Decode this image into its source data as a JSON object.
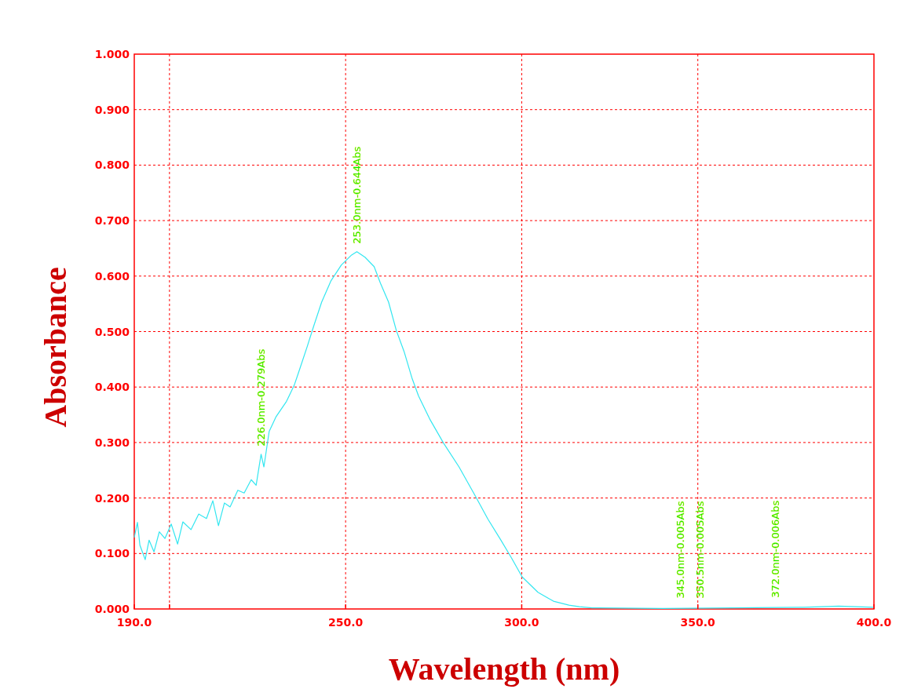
{
  "chart_data": {
    "type": "line",
    "xlabel": "Wavelength (nm)",
    "ylabel": "Absorbance",
    "xlim": [
      190,
      400
    ],
    "ylim": [
      0,
      1
    ],
    "xticks": [
      {
        "value": 190,
        "label": "190.0"
      },
      {
        "value": 200,
        "label": null
      },
      {
        "value": 250,
        "label": "250.0"
      },
      {
        "value": 300,
        "label": "300.0"
      },
      {
        "value": 350,
        "label": "350.0"
      },
      {
        "value": 400,
        "label": "400.0"
      }
    ],
    "yticks": [
      {
        "value": 0,
        "label": "0.000"
      },
      {
        "value": 0.1,
        "label": "0.100"
      },
      {
        "value": 0.2,
        "label": "0.200"
      },
      {
        "value": 0.3,
        "label": "0.300"
      },
      {
        "value": 0.4,
        "label": "0.400"
      },
      {
        "value": 0.5,
        "label": "0.500"
      },
      {
        "value": 0.6,
        "label": "0.600"
      },
      {
        "value": 0.7,
        "label": "0.700"
      },
      {
        "value": 0.8,
        "label": "0.800"
      },
      {
        "value": 0.9,
        "label": "0.900"
      },
      {
        "value": 1,
        "label": "1.000"
      }
    ],
    "grid": true,
    "series": [
      {
        "color": "#33e6f0",
        "x": [
          190,
          190.9,
          191.6,
          193.1,
          194.2,
          195.6,
          197.1,
          198.7,
          200.5,
          202.3,
          203.8,
          206.1,
          208.3,
          210.5,
          212.3,
          213.9,
          215.6,
          217.2,
          219.4,
          221.2,
          223.2,
          224.6,
          226.0,
          226.8,
          228.3,
          230.2,
          233.2,
          235.4,
          236.9,
          239.1,
          241.0,
          243.2,
          245.8,
          248.8,
          251.7,
          253.2,
          255.5,
          258.1,
          259.9,
          262.2,
          264.4,
          266.6,
          268.8,
          270.7,
          274.0,
          277.8,
          282.2,
          286.7,
          290.4,
          294.1,
          297.1,
          300.1,
          304.6,
          309.0,
          313.4,
          316.4,
          320,
          340,
          360,
          380,
          390,
          400
        ],
        "values": [
          0.129,
          0.156,
          0.115,
          0.089,
          0.124,
          0.103,
          0.139,
          0.127,
          0.153,
          0.117,
          0.157,
          0.143,
          0.171,
          0.163,
          0.195,
          0.15,
          0.191,
          0.184,
          0.214,
          0.209,
          0.233,
          0.223,
          0.279,
          0.256,
          0.32,
          0.346,
          0.374,
          0.403,
          0.431,
          0.473,
          0.511,
          0.553,
          0.591,
          0.62,
          0.638,
          0.644,
          0.634,
          0.617,
          0.587,
          0.553,
          0.502,
          0.464,
          0.417,
          0.384,
          0.341,
          0.299,
          0.256,
          0.205,
          0.162,
          0.124,
          0.092,
          0.058,
          0.03,
          0.014,
          0.007,
          0.004,
          0.002,
          0.001,
          0.002,
          0.003,
          0.005,
          0.003
        ]
      }
    ],
    "annotations": [
      {
        "text": "226.0nm-0.279Abs",
        "x": 226,
        "y": 0.279
      },
      {
        "text": "253.0nm-0.644Abs",
        "x": 253,
        "y": 0.644
      },
      {
        "text": "345.0nm-0.005Abs",
        "x": 345,
        "y": 0.005
      },
      {
        "text": "350.5nm-0.005Abs",
        "x": 350.5,
        "y": 0.005
      },
      {
        "text": "372.0nm-0.006Abs",
        "x": 372,
        "y": 0.006
      }
    ]
  }
}
